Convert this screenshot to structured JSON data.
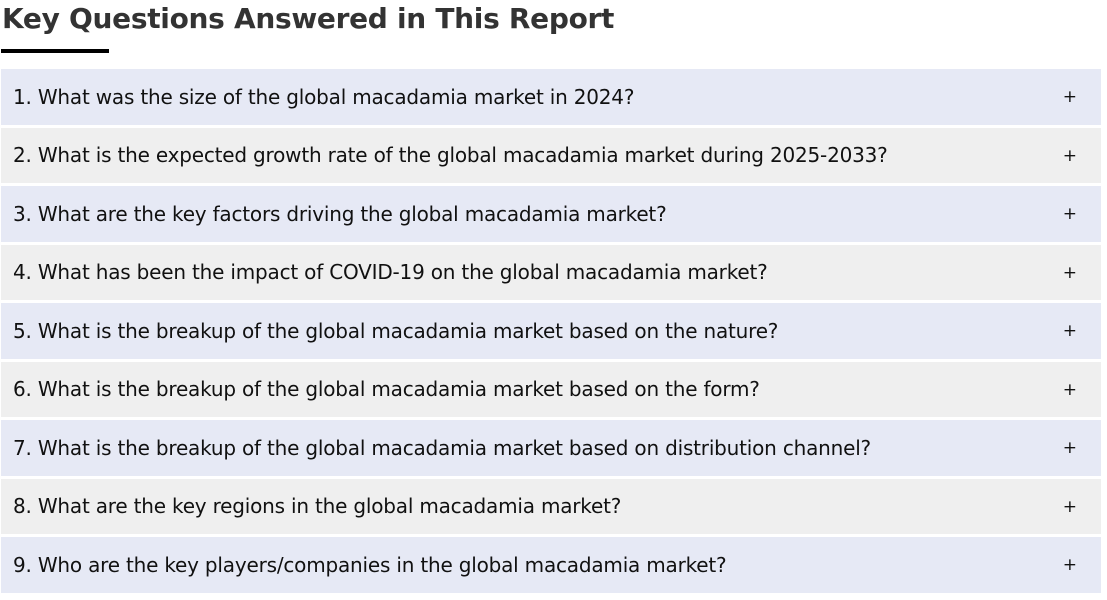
{
  "title": "Key Questions Answered in This Report",
  "questions": [
    "1. What was the size of the global macadamia market in 2024?",
    "2. What is the expected growth rate of the global macadamia market during 2025-2033?",
    "3. What are the key factors driving the global macadamia market?",
    "4. What has been the impact of COVID-19 on the global macadamia market?",
    "5. What is the breakup of the global macadamia market based on the nature?",
    "6. What is the breakup of the global macadamia market based on the form?",
    "7. What is the breakup of the global macadamia market based on distribution channel?",
    "8. What are the key regions in the global macadamia market?",
    "9. Who are the key players/companies in the global macadamia market?"
  ],
  "expand_icon": "+",
  "colors": {
    "row_odd": "#e6e9f5",
    "row_even": "#efefef",
    "underline": "#000000",
    "title": "#333333"
  }
}
